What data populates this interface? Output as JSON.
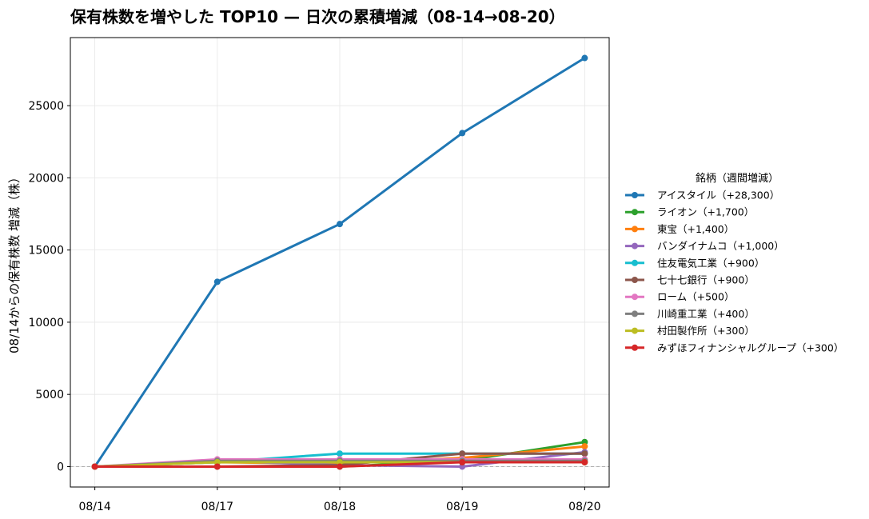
{
  "chart_data": {
    "type": "line",
    "title": "保有株数を増やした TOP10 — 日次の累積増減（08-14→08-20）",
    "xlabel": "",
    "ylabel": "08/14からの保有株数 増減（株）",
    "categories": [
      "08/14",
      "08/17",
      "08/18",
      "08/19",
      "08/20"
    ],
    "yticks": [
      0,
      5000,
      10000,
      15000,
      20000,
      25000
    ],
    "ylim": [
      -1415,
      29715
    ],
    "grid": true,
    "reference_line": {
      "y": 0,
      "style": "dashed",
      "color": "#b0b0b0"
    },
    "legend": {
      "title": "銘柄（週間増減）",
      "placement": "outside-right"
    },
    "series": [
      {
        "name": "アイスタイル（+28,300）",
        "color": "#1f77b4",
        "values": [
          0,
          12800,
          16800,
          23100,
          28300
        ]
      },
      {
        "name": "ライオン（+1,700）",
        "color": "#2ca02c",
        "values": [
          0,
          0,
          0,
          400,
          1700
        ]
      },
      {
        "name": "東宝（+1,400）",
        "color": "#ff7f0e",
        "values": [
          0,
          300,
          200,
          600,
          1400
        ]
      },
      {
        "name": "バンダイナムコ（+1,000）",
        "color": "#9467bd",
        "values": [
          0,
          400,
          100,
          0,
          1000
        ]
      },
      {
        "name": "住友電気工業（+900）",
        "color": "#17becf",
        "values": [
          0,
          300,
          900,
          900,
          900
        ]
      },
      {
        "name": "七十七銀行（+900）",
        "color": "#8c564b",
        "values": [
          0,
          0,
          100,
          900,
          900
        ]
      },
      {
        "name": "ローム（+500）",
        "color": "#e377c2",
        "values": [
          0,
          500,
          500,
          500,
          500
        ]
      },
      {
        "name": "川崎重工業（+400）",
        "color": "#7f7f7f",
        "values": [
          0,
          400,
          400,
          400,
          400
        ]
      },
      {
        "name": "村田製作所（+300）",
        "color": "#bcbd22",
        "values": [
          0,
          300,
          300,
          300,
          300
        ]
      },
      {
        "name": "みずほフィナンシャルグループ（+300）",
        "color": "#d62728",
        "values": [
          0,
          0,
          0,
          300,
          300
        ]
      }
    ]
  }
}
